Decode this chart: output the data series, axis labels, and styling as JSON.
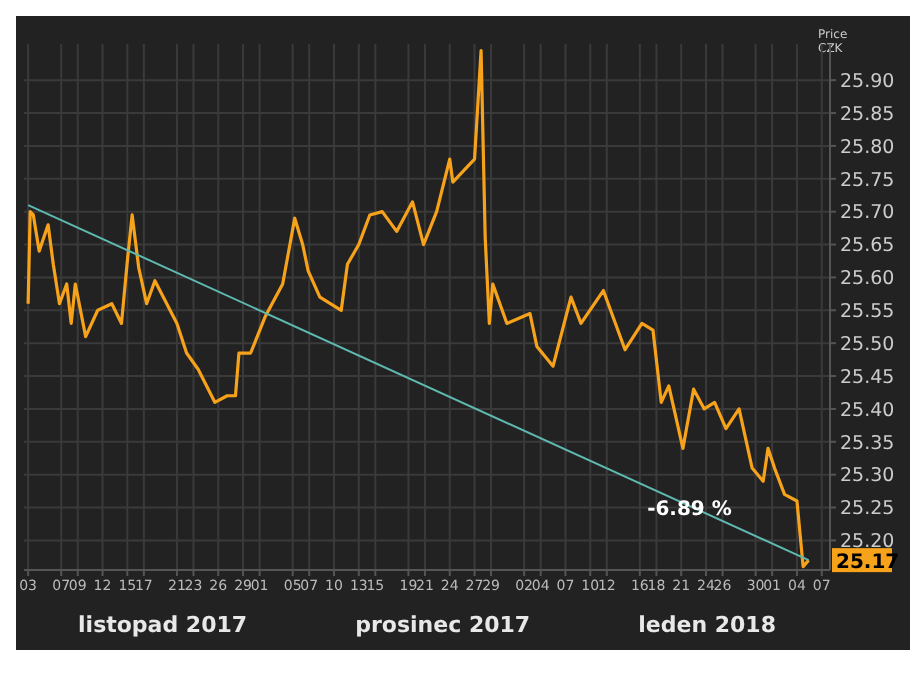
{
  "chart_data": {
    "type": "line",
    "ylabel": "Price CZK",
    "xlim": [
      "2017-11-02T12:00",
      "2018-02-08T00:00"
    ],
    "ylim": [
      25.155,
      25.955
    ],
    "yticks": [
      {
        "value": 25.2,
        "label": "25.20"
      },
      25.25,
      {
        "value": 25.3,
        "label": "25.30"
      },
      25.35,
      {
        "value": 25.4,
        "label": "25.40"
      },
      25.45,
      {
        "value": 25.5,
        "label": "25.50"
      },
      25.55,
      {
        "value": 25.6,
        "label": "25.60"
      },
      25.65,
      {
        "value": 25.7,
        "label": "25.70"
      },
      25.75,
      {
        "value": 25.8,
        "label": "25.80"
      },
      25.85,
      {
        "value": 25.9,
        "label": "25.90"
      }
    ],
    "xticks": [
      {
        "value": "2017-11-03",
        "label": "03"
      },
      {
        "value": "2017-11-07",
        "label": "07"
      },
      {
        "value": "2017-11-09",
        "label": "09"
      },
      {
        "value": "2017-11-12",
        "label": "12"
      },
      {
        "value": "2017-11-15",
        "label": "15"
      },
      {
        "value": "2017-11-17",
        "label": "17"
      },
      {
        "value": "2017-11-21",
        "label": "21"
      },
      {
        "value": "2017-11-23",
        "label": "23"
      },
      {
        "value": "2017-11-26",
        "label": "26"
      },
      {
        "value": "2017-11-29",
        "label": "29"
      },
      {
        "value": "2017-12-01",
        "label": "01"
      },
      {
        "value": "2017-12-05",
        "label": "05"
      },
      {
        "value": "2017-12-07",
        "label": "07"
      },
      {
        "value": "2017-12-10",
        "label": "10"
      },
      {
        "value": "2017-12-13",
        "label": "13"
      },
      {
        "value": "2017-12-15",
        "label": "15"
      },
      {
        "value": "2017-12-19",
        "label": "19"
      },
      {
        "value": "2017-12-21",
        "label": "21"
      },
      {
        "value": "2017-12-24",
        "label": "24"
      },
      {
        "value": "2017-12-27",
        "label": "27"
      },
      {
        "value": "2017-12-29",
        "label": "29"
      },
      {
        "value": "2018-01-02",
        "label": "02"
      },
      {
        "value": "2018-01-04",
        "label": "04"
      },
      {
        "value": "2018-01-07",
        "label": "07"
      },
      {
        "value": "2018-01-10",
        "label": "10"
      },
      {
        "value": "2018-01-12",
        "label": "12"
      },
      {
        "value": "2018-01-16",
        "label": "16"
      },
      {
        "value": "2018-01-18",
        "label": "18"
      },
      {
        "value": "2018-01-21",
        "label": "21"
      },
      {
        "value": "2018-01-24",
        "label": "24"
      },
      {
        "value": "2018-01-26",
        "label": "26"
      },
      {
        "value": "2018-01-30",
        "label": "30"
      },
      {
        "value": "2018-02-01",
        "label": "01"
      },
      {
        "value": "2018-02-04",
        "label": "04"
      },
      {
        "value": "2018-02-07",
        "label": "07"
      }
    ],
    "grid": true,
    "marker": "none",
    "line_style": "solid",
    "series": [
      {
        "color": "#f7a21b",
        "x": [
          "2017-11-03T00:00",
          "2017-11-03T06:00",
          "2017-11-03T15:00",
          "2017-11-04T08:00",
          "2017-11-05T10:00",
          "2017-11-06T01:00",
          "2017-11-06T19:00",
          "2017-11-07T16:00",
          "2017-11-08T05:00",
          "2017-11-08T17:00",
          "2017-11-09T23:00",
          "2017-11-11T10:00",
          "2017-11-13T03:00",
          "2017-11-14T07:00",
          "2017-11-15T01:00",
          "2017-11-15T14:00",
          "2017-11-16T09:00",
          "2017-11-17T08:00",
          "2017-11-18T08:00",
          "2017-11-21T00:00",
          "2017-11-22T04:00",
          "2017-11-23T14:00",
          "2017-11-25T14:00",
          "2017-11-27T02:00",
          "2017-11-28T02:00",
          "2017-11-28T12:00",
          "2017-11-29T22:00",
          "2017-12-01T16:00",
          "2017-12-03T19:00",
          "2017-12-05T06:00",
          "2017-12-06T05:00",
          "2017-12-06T21:00",
          "2017-12-08T07:00",
          "2017-12-10T21:00",
          "2017-12-11T15:00",
          "2017-12-13T00:00",
          "2017-12-14T08:00",
          "2017-12-15T20:00",
          "2017-12-17T14:00",
          "2017-12-19T12:00",
          "2017-12-20T20:00",
          "2017-12-22T10:00",
          "2017-12-24T00:00",
          "2017-12-24T09:00",
          "2017-12-27T00:00",
          "2017-12-27T19:00",
          "2017-12-28T07:00",
          "2017-12-28T19:00",
          "2017-12-29T05:00",
          "2017-12-30T22:00",
          "2018-01-02T17:00",
          "2018-01-03T13:00",
          "2018-01-05T12:00",
          "2018-01-07T16:00",
          "2018-01-08T21:00",
          "2018-01-11T14:00",
          "2018-01-14T05:00",
          "2018-01-16T06:00",
          "2018-01-17T14:00",
          "2018-01-18T14:00",
          "2018-01-19T12:00",
          "2018-01-21T05:00",
          "2018-01-22T12:00",
          "2018-01-23T19:00",
          "2018-01-25T01:00",
          "2018-01-26T10:00",
          "2018-01-28T00:00",
          "2018-01-29T14:00",
          "2018-01-30T22:00",
          "2018-01-31T12:00",
          "2018-02-01T07:00",
          "2018-02-02T12:00",
          "2018-02-04T00:00",
          "2018-02-04T18:00",
          "2018-02-05T10:00"
        ],
        "values": [
          25.56,
          25.7,
          25.695,
          25.64,
          25.68,
          25.62,
          25.56,
          25.59,
          25.53,
          25.59,
          25.51,
          25.55,
          25.56,
          25.53,
          25.63,
          25.695,
          25.615,
          25.56,
          25.595,
          25.53,
          25.485,
          25.46,
          25.41,
          25.42,
          25.42,
          25.485,
          25.485,
          25.54,
          25.59,
          25.69,
          25.65,
          25.61,
          25.57,
          25.55,
          25.62,
          25.65,
          25.695,
          25.7,
          25.67,
          25.715,
          25.65,
          25.7,
          25.78,
          25.745,
          25.78,
          25.945,
          25.66,
          25.53,
          25.59,
          25.53,
          25.545,
          25.495,
          25.465,
          25.57,
          25.53,
          25.58,
          25.49,
          25.53,
          25.52,
          25.41,
          25.435,
          25.34,
          25.43,
          25.4,
          25.41,
          25.37,
          25.4,
          25.31,
          25.29,
          25.34,
          25.31,
          25.27,
          25.26,
          25.16,
          25.17
        ],
        "value_labels": [
          null,
          null,
          null,
          null,
          null,
          null,
          null,
          null,
          null,
          null,
          null,
          null,
          null,
          null,
          null,
          null,
          null,
          null,
          null,
          null,
          null,
          null,
          null,
          null,
          null,
          null,
          null,
          null,
          null,
          null,
          null,
          null,
          null,
          null,
          null,
          null,
          null,
          null,
          null,
          null,
          null,
          null,
          null,
          null,
          null,
          null,
          null,
          null,
          null,
          null,
          null,
          null,
          null,
          null,
          null,
          null,
          null,
          null,
          null,
          null,
          null,
          null,
          null,
          null,
          null,
          null,
          null,
          null,
          null,
          null,
          null,
          null,
          null,
          null,
          "25.17"
        ]
      },
      {
        "type": "line",
        "color": "#5fb8b0",
        "x": [
          "2017-11-03T00:00",
          "2018-02-05T10:00"
        ],
        "values": [
          25.71,
          25.17
        ]
      }
    ],
    "annotations": [
      {
        "text": "-6.89 %",
        "x": "2018-01-22T00:00",
        "y": 25.25
      },
      "listopad 2017",
      "prosinec 2017",
      "leden 2018"
    ]
  }
}
